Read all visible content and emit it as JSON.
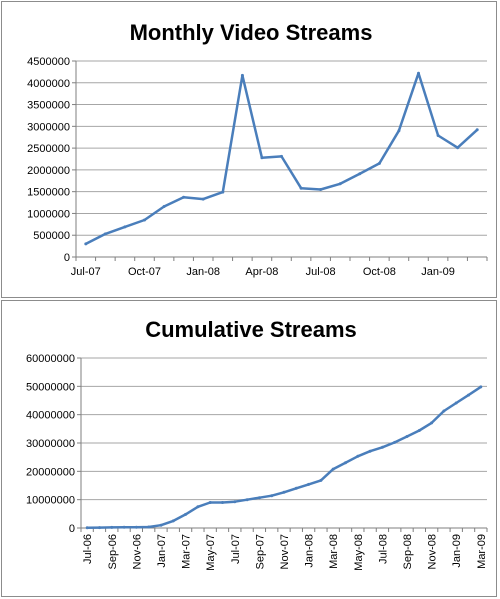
{
  "chart_data": [
    {
      "type": "line",
      "title": "Monthly Video Streams",
      "xlabel": "",
      "ylabel": "",
      "ylim": [
        0,
        4500000
      ],
      "yticks": [
        "0",
        "500000",
        "1000000",
        "1500000",
        "2000000",
        "2500000",
        "3000000",
        "3500000",
        "4000000",
        "4500000"
      ],
      "xtick_labels": [
        "Jul-07",
        "Oct-07",
        "Jan-08",
        "Apr-08",
        "Jul-08",
        "Oct-08",
        "Jan-09"
      ],
      "grid": "horizontal",
      "legend": "none",
      "line_color": "#4a7ebb",
      "x": [
        "Jul-07",
        "Aug-07",
        "Sep-07",
        "Oct-07",
        "Nov-07",
        "Dec-07",
        "Jan-08",
        "Feb-08",
        "Mar-08",
        "Apr-08",
        "May-08",
        "Jun-08",
        "Jul-08",
        "Aug-08",
        "Sep-08",
        "Oct-08",
        "Nov-08",
        "Dec-08",
        "Jan-09",
        "Feb-09",
        "Mar-09"
      ],
      "values": [
        300000,
        530000,
        690000,
        850000,
        1160000,
        1370000,
        1330000,
        1490000,
        4170000,
        2280000,
        2310000,
        1580000,
        1550000,
        1680000,
        1910000,
        2150000,
        2900000,
        4220000,
        2790000,
        2510000,
        2920000
      ]
    },
    {
      "type": "line",
      "title": "Cumulative Streams",
      "xlabel": "",
      "ylabel": "",
      "ylim": [
        0,
        60000000
      ],
      "yticks": [
        "0",
        "10000000",
        "20000000",
        "30000000",
        "40000000",
        "50000000",
        "60000000"
      ],
      "xtick_labels": [
        "Jul-06",
        "Sep-06",
        "Nov-06",
        "Jan-07",
        "Mar-07",
        "May-07",
        "Jul-07",
        "Sep-07",
        "Nov-07",
        "Jan-08",
        "Mar-08",
        "May-08",
        "Jul-08",
        "Sep-08",
        "Nov-08",
        "Jan-09",
        "Mar-09"
      ],
      "grid": "horizontal",
      "legend": "none",
      "line_color": "#4a7ebb",
      "x": [
        "Jul-06",
        "Aug-06",
        "Sep-06",
        "Oct-06",
        "Nov-06",
        "Dec-06",
        "Jan-07",
        "Feb-07",
        "Mar-07",
        "Apr-07",
        "May-07",
        "Jun-07",
        "Jul-07",
        "Aug-07",
        "Sep-07",
        "Oct-07",
        "Nov-07",
        "Dec-07",
        "Jan-08",
        "Feb-08",
        "Mar-08",
        "Apr-08",
        "May-08",
        "Jun-08",
        "Jul-08",
        "Aug-08",
        "Sep-08",
        "Oct-08",
        "Nov-08",
        "Dec-08",
        "Jan-09",
        "Feb-09",
        "Mar-09"
      ],
      "values": [
        100000,
        150000,
        200000,
        250000,
        300000,
        350000,
        1000000,
        2500000,
        4800000,
        7500000,
        9000000,
        9000000,
        9300000,
        10000000,
        10700000,
        11400000,
        12600000,
        14000000,
        15400000,
        16800000,
        20800000,
        23000000,
        25300000,
        27100000,
        28500000,
        30200000,
        32300000,
        34400000,
        37100000,
        41300000,
        44100000,
        46900000,
        49800000
      ]
    }
  ]
}
